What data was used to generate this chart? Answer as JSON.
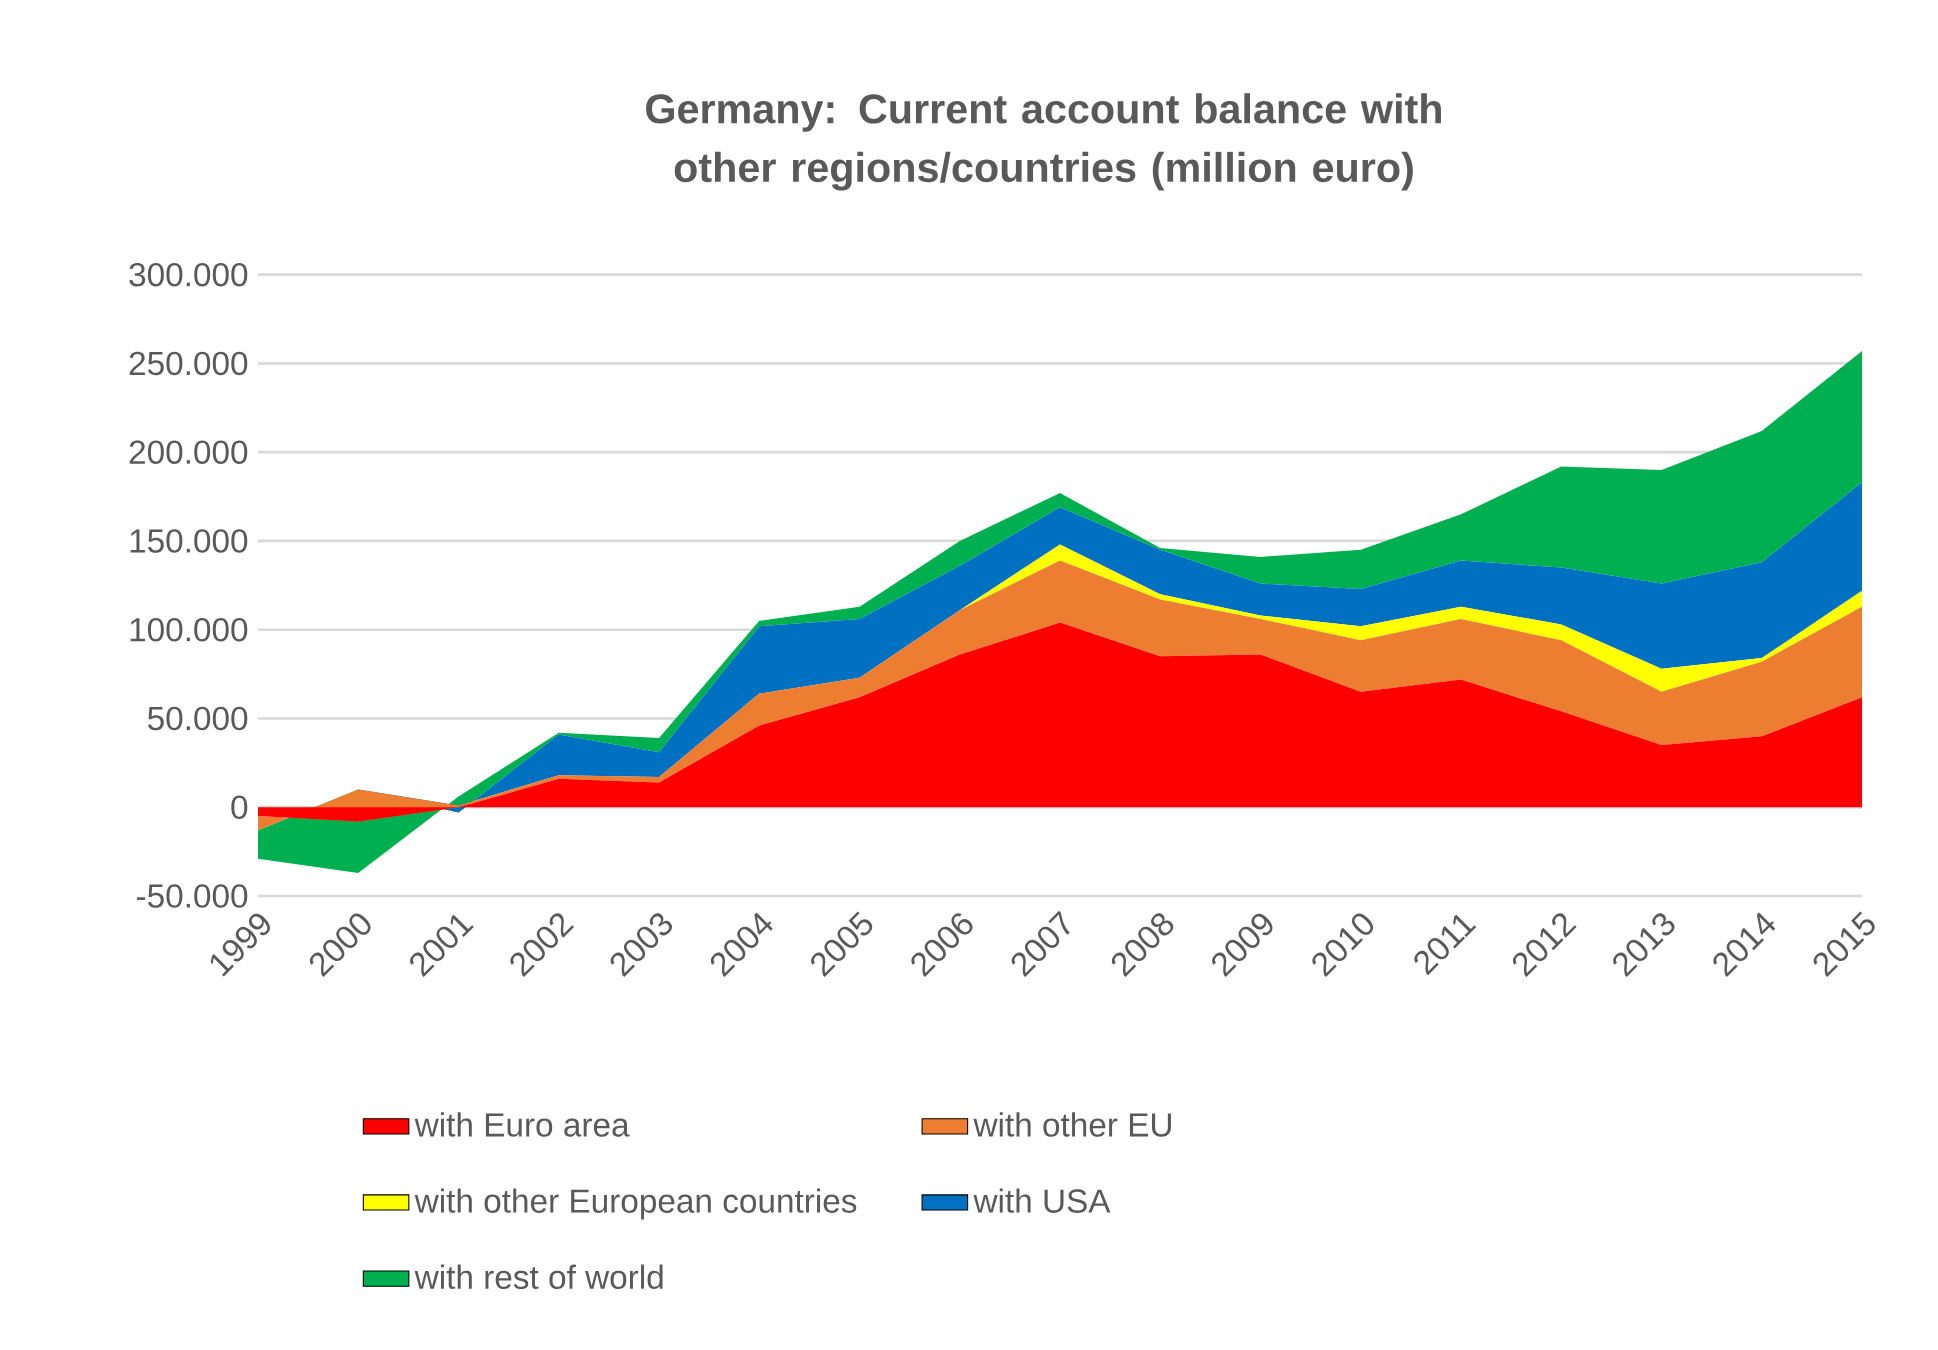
{
  "chart_data": {
    "type": "area",
    "title": "Germany: Current account balance with other regions/countries (million euro)",
    "categories": [
      "1999",
      "2000",
      "2001",
      "2002",
      "2003",
      "2004",
      "2005",
      "2006",
      "2007",
      "2008",
      "2009",
      "2010",
      "2011",
      "2012",
      "2013",
      "2014",
      "2015"
    ],
    "stacked": true,
    "series": [
      {
        "name": "with Euro area",
        "color": "#ff0000",
        "values": [
          -5000,
          -8000,
          0,
          16000,
          14000,
          46000,
          62000,
          86000,
          104000,
          85000,
          86000,
          65000,
          72000,
          54000,
          35000,
          40000,
          62000
        ]
      },
      {
        "name": "with other EU",
        "color": "#ed7d31",
        "values": [
          -8000,
          18000,
          1000,
          2000,
          3000,
          18000,
          11000,
          25000,
          35000,
          32000,
          20000,
          29000,
          34000,
          40000,
          30000,
          42000,
          51000
        ]
      },
      {
        "name": "with other European countries",
        "color": "#ffff00",
        "values": [
          0,
          0,
          0,
          0,
          0,
          0,
          0,
          0,
          9000,
          3000,
          2000,
          8000,
          7000,
          9000,
          13000,
          2000,
          9000
        ]
      },
      {
        "name": "with USA",
        "color": "#0070c0",
        "values": [
          0,
          0,
          -4000,
          23000,
          14000,
          38000,
          33000,
          25000,
          21000,
          25000,
          18000,
          21000,
          26000,
          32000,
          48000,
          54000,
          61000
        ]
      },
      {
        "name": "with rest of world",
        "color": "#00b050",
        "values": [
          -16000,
          -47000,
          9000,
          1000,
          8000,
          3000,
          7000,
          14000,
          8000,
          1000,
          15000,
          22000,
          26000,
          57000,
          64000,
          74000,
          74000
        ]
      }
    ],
    "ylim": [
      -50000,
      300000
    ],
    "yticks": [
      {
        "value": -50000,
        "label": "-50.000"
      },
      0,
      {
        "value": 50000,
        "label": "50.000"
      },
      {
        "value": 100000,
        "label": "100.000"
      },
      {
        "value": 150000,
        "label": "150.000"
      },
      {
        "value": 200000,
        "label": "200.000"
      },
      {
        "value": 250000,
        "label": "250.000"
      },
      {
        "value": 300000,
        "label": "300.000"
      }
    ],
    "grid": "y",
    "legend": "bottom"
  }
}
